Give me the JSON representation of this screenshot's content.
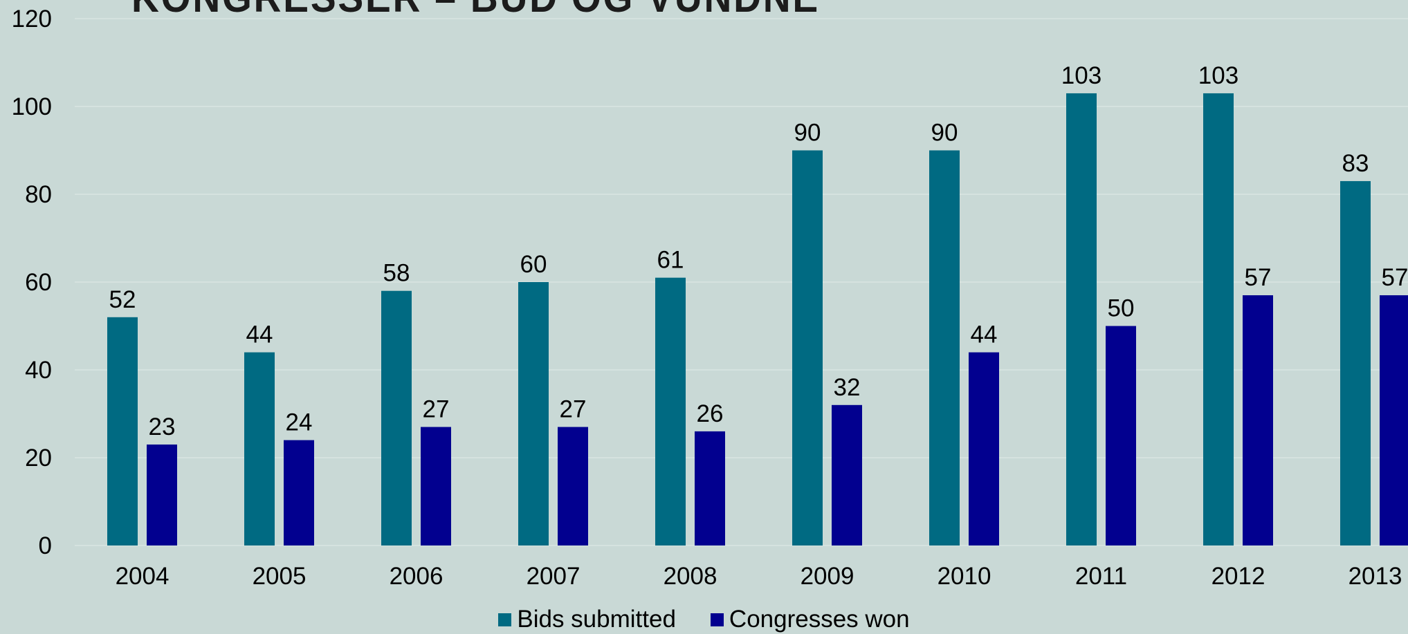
{
  "chart_data": {
    "type": "bar",
    "title": "KONGRESSER – BUD OG VUNDNE",
    "categories": [
      "2004",
      "2005",
      "2006",
      "2007",
      "2008",
      "2009",
      "2010",
      "2011",
      "2012",
      "2013"
    ],
    "series": [
      {
        "name": "Bids submitted",
        "values": [
          52,
          44,
          58,
          60,
          61,
          90,
          90,
          103,
          103,
          83
        ],
        "color": "#006a82"
      },
      {
        "name": "Congresses won",
        "values": [
          23,
          24,
          27,
          27,
          26,
          32,
          44,
          50,
          57,
          57
        ],
        "color": "#02008f"
      }
    ],
    "ylim": [
      0,
      120
    ],
    "yticks": [
      "0",
      "20",
      "40",
      "60",
      "80",
      "100",
      "120"
    ],
    "grid": true,
    "legend": "bottom-center"
  },
  "colors": {
    "background": "#c9d9d6",
    "gridline": "#d9e5e2"
  }
}
